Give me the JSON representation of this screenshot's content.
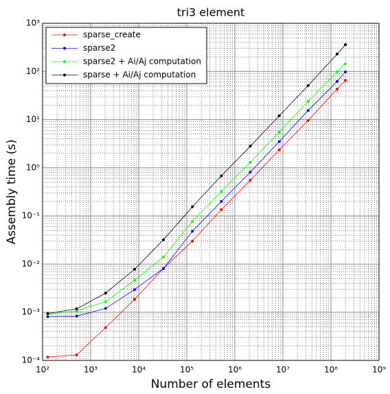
{
  "chart_data": {
    "type": "line",
    "title": "tri3 element",
    "x_label": "Number of elements",
    "y_label": "Assembly time (s)",
    "x_scale": "log",
    "y_scale": "log",
    "grid": true,
    "legend": "upper left",
    "x": [
      128,
      512,
      2048,
      8192,
      32768,
      131072,
      524288,
      2097152,
      8388608,
      33554432,
      134217728,
      200000000
    ],
    "series": [
      {
        "name": "sparse_create",
        "color": "#ff0000",
        "values": [
          0.000117,
          0.00013,
          0.00048,
          0.00185,
          0.0081,
          0.03,
          0.135,
          0.55,
          2.35,
          9.6,
          43,
          65
        ]
      },
      {
        "name": "sparse2",
        "color": "#0000ff",
        "values": [
          0.00081,
          0.00083,
          0.0012,
          0.00295,
          0.0081,
          0.048,
          0.2,
          0.81,
          3.5,
          15.5,
          62,
          98
        ]
      },
      {
        "name": "sparse2 + Ai/Aj computation",
        "color": "#00ff00",
        "values": [
          0.0009,
          0.00107,
          0.00165,
          0.0046,
          0.014,
          0.077,
          0.32,
          1.3,
          5.5,
          24,
          98,
          145
        ]
      },
      {
        "name": "sparse + Ai/Aj computation",
        "color": "#000000",
        "values": [
          0.00094,
          0.00118,
          0.0025,
          0.0078,
          0.032,
          0.155,
          0.68,
          2.8,
          12,
          51,
          230,
          360
        ]
      }
    ],
    "xlim": [
      100,
      1000000000
    ],
    "xticks": [
      {
        "value": 100,
        "label": "10²"
      },
      {
        "value": 1000,
        "label": "10³"
      },
      {
        "value": 10000,
        "label": "10⁴"
      },
      {
        "value": 100000,
        "label": "10⁵"
      },
      {
        "value": 1000000,
        "label": "10⁶"
      },
      {
        "value": 10000000,
        "label": "10⁷"
      },
      {
        "value": 100000000,
        "label": "10⁸"
      },
      {
        "value": 1000000000,
        "label": "10⁹"
      }
    ],
    "ylim": [
      0.0001,
      1000
    ],
    "yticks": [
      {
        "value": 0.0001,
        "label": "10⁻⁴"
      },
      {
        "value": 0.001,
        "label": "10⁻³"
      },
      {
        "value": 0.01,
        "label": "10⁻²"
      },
      {
        "value": 0.1,
        "label": "10⁻¹"
      },
      {
        "value": 1,
        "label": "10⁰"
      },
      {
        "value": 10,
        "label": "10¹"
      },
      {
        "value": 100,
        "label": "10²"
      },
      {
        "value": 1000,
        "label": "10³"
      }
    ]
  }
}
